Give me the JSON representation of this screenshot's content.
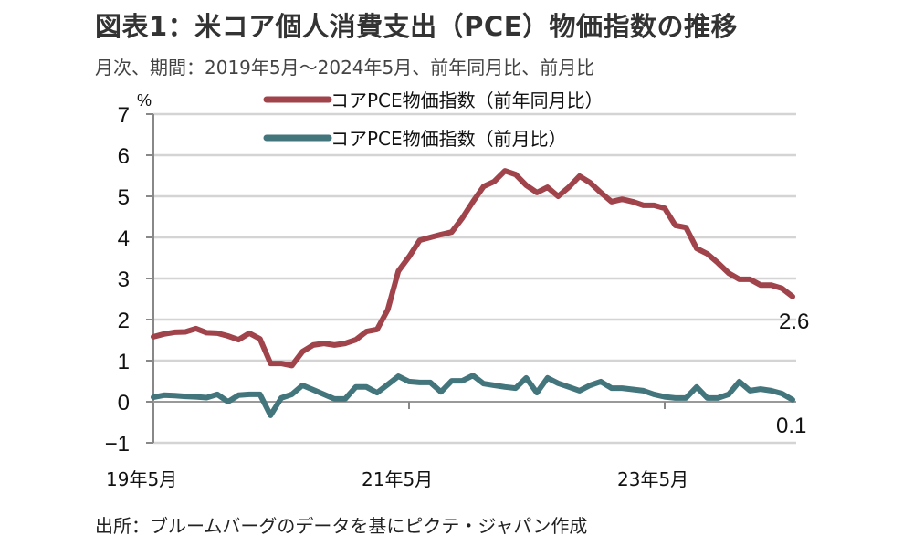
{
  "header": {
    "title": "図表1：米コア個人消費支出（PCE）物価指数の推移",
    "subtitle": "月次、期間：2019年5月～2024年5月、前年同月比、前月比"
  },
  "footer": {
    "source": "出所：ブルームバーグのデータを基にピクテ・ジャパン作成"
  },
  "chart_data": {
    "type": "line",
    "title": "図表1：米コア個人消費支出（PCE）物価指数の推移",
    "subtitle": "月次、期間：2019年5月～2024年5月、前年同月比、前月比",
    "ylabel": "%",
    "xlabel": "",
    "ylim": [
      -1,
      7
    ],
    "yticks": [
      -1,
      0,
      1,
      2,
      3,
      4,
      5,
      6,
      7
    ],
    "ytick_labels": [
      "−1",
      "0",
      "1",
      "2",
      "3",
      "4",
      "5",
      "6",
      "7"
    ],
    "x_start": "2019-05",
    "x_count": 61,
    "xticks": [
      {
        "index": 0,
        "label": "19年5月"
      },
      {
        "index": 24,
        "label": "21年5月"
      },
      {
        "index": 48,
        "label": "23年5月"
      }
    ],
    "grid": true,
    "legend_position": "top-center",
    "series": [
      {
        "name": "コアPCE物価指数（前年同月比）",
        "color": "#a0434a",
        "end_label": "2.6",
        "values": [
          1.58,
          1.65,
          1.69,
          1.7,
          1.78,
          1.68,
          1.67,
          1.6,
          1.51,
          1.67,
          1.53,
          0.93,
          0.93,
          0.88,
          1.22,
          1.38,
          1.42,
          1.38,
          1.42,
          1.51,
          1.71,
          1.76,
          2.24,
          3.18,
          3.53,
          3.93,
          4.0,
          4.07,
          4.13,
          4.47,
          4.87,
          5.24,
          5.36,
          5.62,
          5.53,
          5.27,
          5.09,
          5.22,
          5.0,
          5.22,
          5.49,
          5.33,
          5.09,
          4.87,
          4.93,
          4.87,
          4.78,
          4.78,
          4.71,
          4.29,
          4.24,
          3.73,
          3.6,
          3.38,
          3.13,
          2.98,
          2.98,
          2.84,
          2.84,
          2.76,
          2.56
        ]
      },
      {
        "name": "コアPCE物価指数（前月比）",
        "color": "#43757c",
        "end_label": "0.1",
        "values": [
          0.11,
          0.16,
          0.15,
          0.13,
          0.12,
          0.1,
          0.18,
          0.0,
          0.16,
          0.18,
          0.18,
          -0.33,
          0.09,
          0.18,
          0.4,
          0.29,
          0.18,
          0.07,
          0.07,
          0.36,
          0.36,
          0.22,
          0.42,
          0.62,
          0.49,
          0.47,
          0.47,
          0.24,
          0.51,
          0.51,
          0.64,
          0.44,
          0.4,
          0.36,
          0.33,
          0.58,
          0.22,
          0.58,
          0.45,
          0.36,
          0.27,
          0.4,
          0.49,
          0.33,
          0.33,
          0.3,
          0.27,
          0.18,
          0.12,
          0.09,
          0.09,
          0.36,
          0.09,
          0.09,
          0.18,
          0.49,
          0.27,
          0.31,
          0.27,
          0.2,
          0.05
        ]
      }
    ]
  }
}
